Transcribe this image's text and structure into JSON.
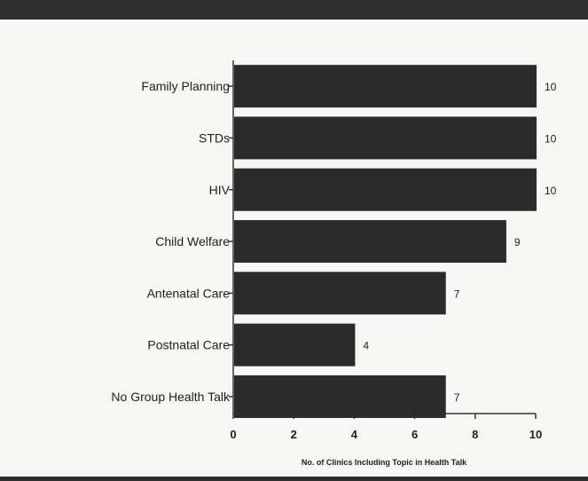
{
  "chart_data": {
    "type": "bar",
    "orientation": "horizontal",
    "categories": [
      "Family Planning",
      "STDs",
      "HIV",
      "Child Welfare",
      "Antenatal Care",
      "Postnatal Care",
      "No Group Health Talk"
    ],
    "values": [
      10,
      10,
      10,
      9,
      7,
      4,
      7
    ],
    "title": "",
    "xlabel": "No. of Clinics Including Topic in Health Talk",
    "ylabel": "",
    "xlim": [
      0,
      10
    ],
    "xticks": [
      0,
      2,
      4,
      6,
      8,
      10
    ],
    "data_labels": true,
    "bar_color": "#2b2b2b",
    "grid": false,
    "legend": "none"
  }
}
